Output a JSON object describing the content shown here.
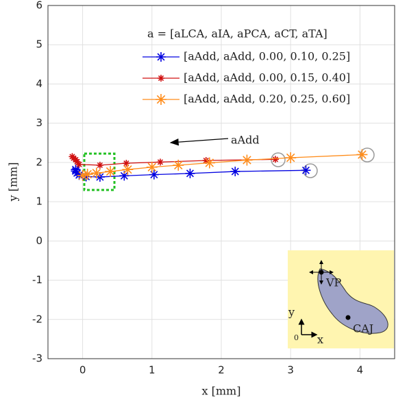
{
  "chart_data": {
    "type": "line",
    "x_label": "x [mm]",
    "y_label": "y [mm]",
    "legend_title": "a = [aLCA, aIA, aPCA, aCT, aTA]",
    "annotation": "aAdd",
    "inset_labels": [
      "VP",
      "CAJ",
      "y",
      "x",
      "0"
    ],
    "xlim": [
      -0.5,
      4.5
    ],
    "ylim": [
      -3,
      6
    ],
    "xticks": [
      0,
      1,
      2,
      3,
      4
    ],
    "yticks": [
      -3,
      -2,
      -1,
      0,
      1,
      2,
      3,
      4,
      5,
      6
    ],
    "grid": true,
    "series": [
      {
        "name": "[aAdd, aAdd, 0.00, 0.10, 0.25]",
        "color": "#0000e0",
        "marker_size": 7,
        "x": [
          3.22,
          2.2,
          1.55,
          1.03,
          0.6,
          0.25,
          0.05,
          -0.05,
          -0.08,
          -0.1,
          -0.1
        ],
        "values": [
          1.8,
          1.77,
          1.72,
          1.69,
          1.66,
          1.63,
          1.64,
          1.68,
          1.73,
          1.78,
          1.82
        ]
      },
      {
        "name": "[aAdd, aAdd, 0.00, 0.15, 0.40]",
        "color": "#d01010",
        "marker_size": 5,
        "x": [
          2.78,
          1.78,
          1.12,
          0.63,
          0.25,
          -0.05,
          -0.08,
          -0.1,
          -0.13,
          -0.15
        ],
        "values": [
          2.08,
          2.05,
          2.01,
          1.98,
          1.93,
          1.95,
          2.02,
          2.07,
          2.11,
          2.15
        ]
      },
      {
        "name": "[aAdd, aAdd, 0.20, 0.25, 0.60]",
        "color": "#ff8c1a",
        "marker_size": 8,
        "x": [
          4.03,
          3.0,
          2.37,
          1.83,
          1.38,
          1.0,
          0.65,
          0.4,
          0.2,
          0.07,
          0.0
        ],
        "values": [
          2.2,
          2.12,
          2.06,
          1.99,
          1.93,
          1.88,
          1.82,
          1.77,
          1.73,
          1.7,
          1.67
        ]
      }
    ]
  }
}
